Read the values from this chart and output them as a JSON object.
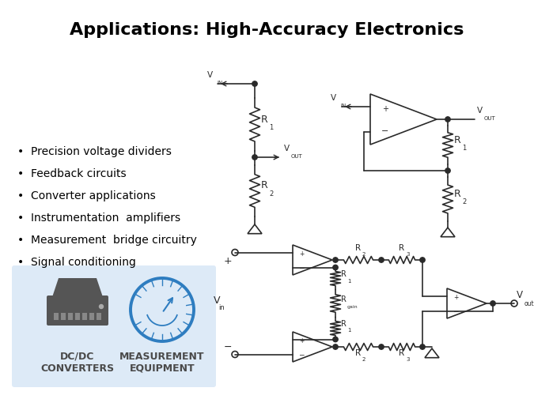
{
  "title": "Applications: High-Accuracy Electronics",
  "title_fontsize": 16,
  "background": "#ffffff",
  "cc": "#2a2a2a",
  "bullets": [
    "Precision voltage dividers",
    "Feedback circuits",
    "Converter applications",
    "Instrumentation  amplifiers",
    "Measurement  bridge circuitry",
    "Signal conditioning"
  ],
  "bullet_fs": 10,
  "icon_bg": "#ddeaf7",
  "dcdc_text": "DC/DC\nCONVERTERS",
  "meas_text": "MEASUREMENT\nEQUIPMENT",
  "icon_text_color": "#4a4a4a",
  "gauge_color": "#2e7dc0",
  "hdd_color": "#555555"
}
